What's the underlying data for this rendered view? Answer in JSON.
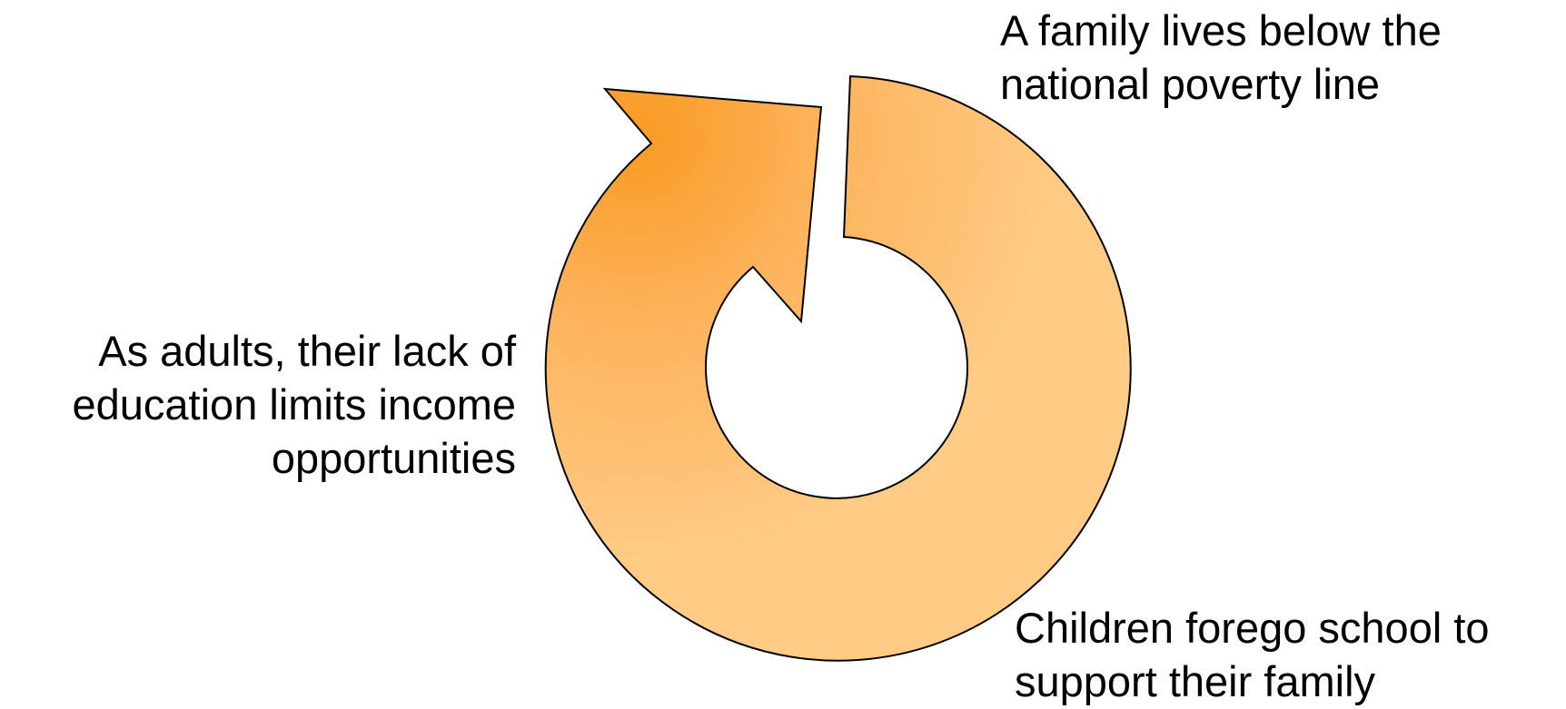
{
  "diagram": {
    "type": "cycle",
    "colors": {
      "arrow_light": "#FFCB85",
      "arrow_mid": "#FDB25A",
      "arrow_dark": "#F99A22",
      "outline": "#000000",
      "text": "#000000",
      "background": "#FFFFFF"
    },
    "labels": {
      "top": {
        "line1": "A family lives below the",
        "line2": "national poverty line"
      },
      "bottom": {
        "line1": "Children forego school to",
        "line2": "support their family"
      },
      "left": {
        "line1": "As adults, their lack of",
        "line2": "education limits income",
        "line3": "opportunities"
      }
    }
  }
}
